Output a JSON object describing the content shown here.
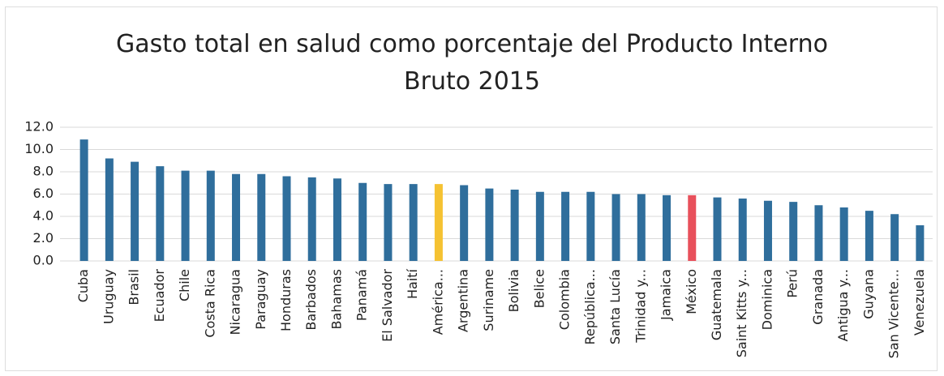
{
  "chart_data": {
    "type": "bar",
    "title": "Gasto total en salud como porcentaje del Producto Interno Bruto 2015",
    "categories": [
      "Cuba",
      "Uruguay",
      "Brasil",
      "Ecuador",
      "Chile",
      "Costa Rica",
      "Nicaragua",
      "Paraguay",
      "Honduras",
      "Barbados",
      "Bahamas",
      "Panamá",
      "El Salvador",
      "Haití",
      "América...",
      "Argentina",
      "Suriname",
      "Bolivia",
      "Belice",
      "Colombia",
      "República...",
      "Santa Lucía",
      "Trinidad y...",
      "Jamaica",
      "México",
      "Guatemala",
      "Saint Kitts y...",
      "Dominica",
      "Perú",
      "Granada",
      "Antigua y...",
      "Guyana",
      "San Vicente...",
      "Venezuela"
    ],
    "values": [
      10.9,
      9.2,
      8.9,
      8.5,
      8.1,
      8.1,
      7.8,
      7.8,
      7.6,
      7.5,
      7.4,
      7.0,
      6.9,
      6.9,
      6.9,
      6.8,
      6.5,
      6.4,
      6.2,
      6.2,
      6.2,
      6.0,
      6.0,
      5.9,
      5.9,
      5.7,
      5.6,
      5.4,
      5.3,
      5.0,
      4.8,
      4.5,
      4.2,
      3.2
    ],
    "colors": [
      "#2f6e9c",
      "#2f6e9c",
      "#2f6e9c",
      "#2f6e9c",
      "#2f6e9c",
      "#2f6e9c",
      "#2f6e9c",
      "#2f6e9c",
      "#2f6e9c",
      "#2f6e9c",
      "#2f6e9c",
      "#2f6e9c",
      "#2f6e9c",
      "#2f6e9c",
      "#f5c232",
      "#2f6e9c",
      "#2f6e9c",
      "#2f6e9c",
      "#2f6e9c",
      "#2f6e9c",
      "#2f6e9c",
      "#2f6e9c",
      "#2f6e9c",
      "#2f6e9c",
      "#e8505b",
      "#2f6e9c",
      "#2f6e9c",
      "#2f6e9c",
      "#2f6e9c",
      "#2f6e9c",
      "#2f6e9c",
      "#2f6e9c",
      "#2f6e9c",
      "#2f6e9c"
    ],
    "ylim": [
      0,
      12
    ],
    "yticks": [
      {
        "value": 0,
        "label": "0.0"
      },
      {
        "value": 2,
        "label": "2.0"
      },
      {
        "value": 4,
        "label": "4.0"
      },
      {
        "value": 6,
        "label": "6.0"
      },
      {
        "value": 8,
        "label": "8.0"
      },
      {
        "value": 10,
        "label": "10.0"
      },
      {
        "value": 12,
        "label": "12.0"
      }
    ],
    "grid": true
  }
}
